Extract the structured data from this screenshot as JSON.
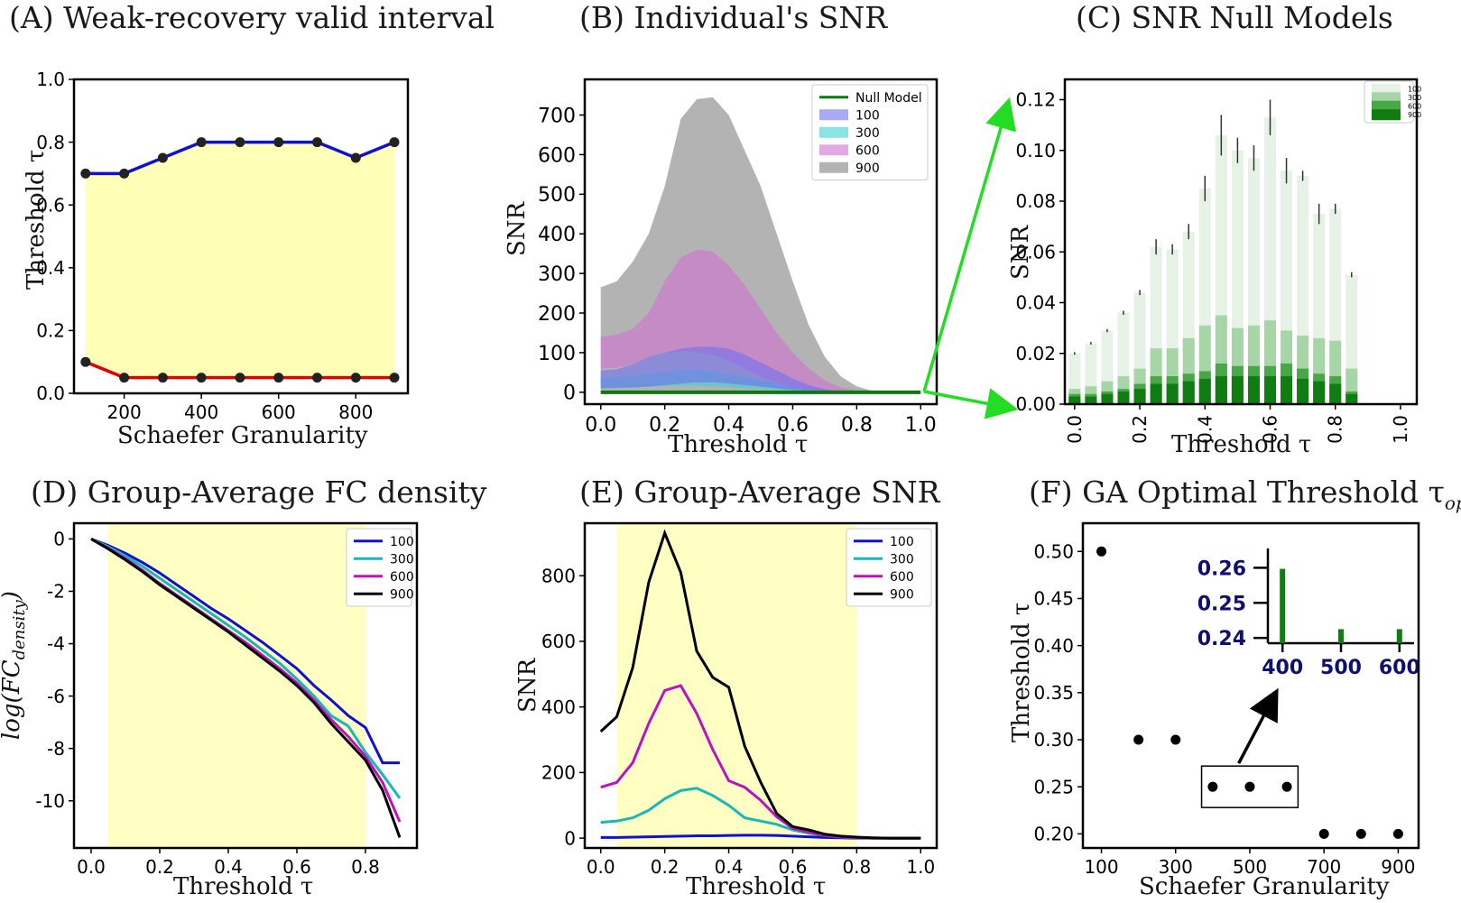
{
  "colors": {
    "blue": "#1010d0",
    "red": "#e00000",
    "yellow_fill": "#ffffb8",
    "cyan": "#17b8b8",
    "magenta": "#c010c0",
    "black": "#000000",
    "green_null": "#0c7a0c",
    "arrow_green": "#22dd22",
    "inset_text": "#101070"
  },
  "chart_data": [
    {
      "id": "A",
      "type": "line",
      "title": "(A) Weak-recovery valid interval",
      "xlabel": "Schaefer Granularity",
      "ylabel": "Threshold τ",
      "xlim": [
        70,
        935
      ],
      "ylim": [
        0,
        1.0
      ],
      "xticks": [
        200,
        400,
        600,
        800
      ],
      "yticks": [
        0.0,
        0.2,
        0.4,
        0.6,
        0.8,
        1.0
      ],
      "x": [
        100,
        200,
        300,
        400,
        500,
        600,
        700,
        800,
        900
      ],
      "series": [
        {
          "name": "upper",
          "color": "blue",
          "values": [
            0.7,
            0.7,
            0.75,
            0.8,
            0.8,
            0.8,
            0.8,
            0.75,
            0.8
          ]
        },
        {
          "name": "lower",
          "color": "red",
          "values": [
            0.1,
            0.05,
            0.05,
            0.05,
            0.05,
            0.05,
            0.05,
            0.05,
            0.05
          ]
        }
      ]
    },
    {
      "id": "B",
      "type": "area",
      "title": "(B) Individual's SNR",
      "xlabel": "Threshold τ",
      "ylabel": "SNR",
      "xlim": [
        -0.05,
        1.05
      ],
      "ylim": [
        -30,
        790
      ],
      "xticks": [
        0.0,
        0.2,
        0.4,
        0.6,
        0.8,
        1.0
      ],
      "yticks": [
        0,
        100,
        200,
        300,
        400,
        500,
        600,
        700
      ],
      "x": [
        0.0,
        0.05,
        0.1,
        0.15,
        0.2,
        0.25,
        0.3,
        0.35,
        0.4,
        0.45,
        0.5,
        0.55,
        0.6,
        0.65,
        0.7,
        0.75,
        0.8,
        0.85,
        0.9,
        0.95,
        1.0
      ],
      "legend": [
        "Null Model",
        "100",
        "300",
        "600",
        "900"
      ],
      "series": [
        {
          "name": "900",
          "color": "#808080",
          "upper": [
            265,
            280,
            330,
            400,
            520,
            690,
            740,
            745,
            700,
            610,
            520,
            400,
            280,
            170,
            90,
            40,
            15,
            3,
            1,
            0,
            0
          ],
          "lower": [
            0,
            0,
            0,
            0,
            0,
            0,
            0,
            0,
            0,
            0,
            0,
            0,
            0,
            0,
            0,
            0,
            0,
            0,
            0,
            0,
            0
          ]
        },
        {
          "name": "600",
          "color": "#d070d0",
          "upper": [
            140,
            145,
            160,
            200,
            280,
            340,
            360,
            355,
            320,
            270,
            210,
            150,
            100,
            60,
            30,
            12,
            4,
            1,
            0,
            0,
            0
          ],
          "lower": [
            60,
            62,
            70,
            90,
            100,
            105,
            100,
            95,
            80,
            60,
            40,
            25,
            12,
            5,
            2,
            0,
            0,
            0,
            0,
            0,
            0
          ]
        },
        {
          "name": "300",
          "color": "#40d0d0",
          "upper": [
            35,
            38,
            42,
            48,
            50,
            55,
            55,
            52,
            45,
            38,
            30,
            22,
            15,
            8,
            4,
            1,
            0,
            0,
            0,
            0,
            0
          ],
          "lower": [
            10,
            11,
            12,
            14,
            15,
            16,
            16,
            15,
            13,
            10,
            8,
            6,
            4,
            2,
            1,
            0,
            0,
            0,
            0,
            0,
            0
          ]
        },
        {
          "name": "100",
          "color": "#7070f0",
          "upper": [
            55,
            58,
            70,
            90,
            100,
            110,
            115,
            115,
            110,
            95,
            75,
            55,
            35,
            18,
            8,
            2,
            0,
            0,
            0,
            0,
            0
          ],
          "lower": [
            10,
            11,
            12,
            14,
            18,
            22,
            25,
            25,
            22,
            18,
            14,
            10,
            6,
            3,
            1,
            0,
            0,
            0,
            0,
            0,
            0
          ]
        }
      ],
      "null_model": {
        "name": "Null Model",
        "value": 0
      }
    },
    {
      "id": "C",
      "type": "bar",
      "title": "(C) SNR Null Models",
      "xlabel": "Threshold τ",
      "ylabel": "SNR",
      "xlim": [
        -0.03,
        1.05
      ],
      "ylim": [
        0,
        0.128
      ],
      "xticks": [
        0.0,
        0.2,
        0.4,
        0.6,
        0.8,
        1.0
      ],
      "yticks": [
        0.0,
        0.02,
        0.04,
        0.06,
        0.08,
        0.1,
        0.12
      ],
      "legend": [
        "100",
        "300",
        "600",
        "900"
      ],
      "x": [
        0.0,
        0.05,
        0.1,
        0.15,
        0.2,
        0.25,
        0.3,
        0.35,
        0.4,
        0.45,
        0.5,
        0.55,
        0.6,
        0.65,
        0.7,
        0.75,
        0.8,
        0.85
      ],
      "series": [
        {
          "name": "100",
          "color": "#e6f2e6",
          "values": [
            0.02,
            0.024,
            0.029,
            0.036,
            0.044,
            0.062,
            0.061,
            0.068,
            0.085,
            0.106,
            0.1,
            0.097,
            0.113,
            0.092,
            0.09,
            0.075,
            0.077,
            0.051
          ]
        },
        {
          "name": "300",
          "color": "#a6d6a6",
          "values": [
            0.006,
            0.007,
            0.009,
            0.011,
            0.014,
            0.022,
            0.022,
            0.026,
            0.031,
            0.035,
            0.03,
            0.031,
            0.033,
            0.029,
            0.027,
            0.026,
            0.025,
            0.014
          ]
        },
        {
          "name": "600",
          "color": "#48a848",
          "values": [
            0.004,
            0.004,
            0.005,
            0.006,
            0.008,
            0.011,
            0.011,
            0.012,
            0.013,
            0.016,
            0.015,
            0.015,
            0.015,
            0.016,
            0.014,
            0.012,
            0.011,
            0.005
          ]
        },
        {
          "name": "900",
          "color": "#0f7d0f",
          "values": [
            0.003,
            0.003,
            0.004,
            0.005,
            0.006,
            0.008,
            0.008,
            0.009,
            0.01,
            0.011,
            0.011,
            0.011,
            0.011,
            0.011,
            0.01,
            0.009,
            0.008,
            0.004
          ]
        }
      ],
      "errors": [
        0.0005,
        0.0005,
        0.0006,
        0.0008,
        0.001,
        0.003,
        0.002,
        0.003,
        0.005,
        0.008,
        0.005,
        0.005,
        0.007,
        0.005,
        0.002,
        0.004,
        0.002,
        0.001
      ]
    },
    {
      "id": "D",
      "type": "line",
      "title": "(D) Group-Average FC density",
      "xlabel": "Threshold τ",
      "ylabel": "log(FC",
      "ylabel_sub": "density",
      "ylabel_end": ")",
      "xlim": [
        -0.05,
        0.95
      ],
      "ylim": [
        -11.8,
        0.6
      ],
      "xticks": [
        0.0,
        0.2,
        0.4,
        0.6,
        0.8
      ],
      "yticks": [
        0,
        -2,
        -4,
        -6,
        -8,
        -10
      ],
      "shade": [
        0.05,
        0.8
      ],
      "legend": [
        "100",
        "300",
        "600",
        "900"
      ],
      "x": [
        0.0,
        0.05,
        0.1,
        0.15,
        0.2,
        0.25,
        0.3,
        0.35,
        0.4,
        0.45,
        0.5,
        0.55,
        0.6,
        0.65,
        0.7,
        0.75,
        0.8,
        0.85,
        0.9
      ],
      "series": [
        {
          "name": "100",
          "color": "blue",
          "values": [
            0,
            -0.25,
            -0.55,
            -0.9,
            -1.3,
            -1.75,
            -2.2,
            -2.65,
            -3.05,
            -3.5,
            -3.95,
            -4.45,
            -4.95,
            -5.6,
            -6.15,
            -6.75,
            -7.2,
            -8.55,
            -8.55
          ]
        },
        {
          "name": "300",
          "color": "cyan",
          "values": [
            0,
            -0.3,
            -0.65,
            -1.05,
            -1.5,
            -1.95,
            -2.4,
            -2.85,
            -3.3,
            -3.75,
            -4.25,
            -4.75,
            -5.35,
            -6.0,
            -6.75,
            -7.15,
            -8.15,
            -9.0,
            -9.9
          ]
        },
        {
          "name": "600",
          "color": "magenta",
          "values": [
            0,
            -0.35,
            -0.75,
            -1.2,
            -1.7,
            -2.15,
            -2.6,
            -3.05,
            -3.5,
            -3.95,
            -4.45,
            -4.95,
            -5.5,
            -6.15,
            -6.9,
            -7.55,
            -8.3,
            -9.3,
            -10.8
          ]
        },
        {
          "name": "900",
          "color": "black",
          "values": [
            0,
            -0.38,
            -0.8,
            -1.25,
            -1.75,
            -2.2,
            -2.65,
            -3.1,
            -3.55,
            -4.05,
            -4.55,
            -5.05,
            -5.6,
            -6.25,
            -7.05,
            -7.75,
            -8.45,
            -9.6,
            -11.4
          ]
        }
      ]
    },
    {
      "id": "E",
      "type": "line",
      "title": "(E) Group-Average SNR",
      "xlabel": "Threshold τ",
      "ylabel": "SNR",
      "xlim": [
        -0.05,
        1.05
      ],
      "ylim": [
        -30,
        960
      ],
      "xticks": [
        0.0,
        0.2,
        0.4,
        0.6,
        0.8,
        1.0
      ],
      "yticks": [
        0,
        200,
        400,
        600,
        800
      ],
      "shade": [
        0.05,
        0.8
      ],
      "legend": [
        "100",
        "300",
        "600",
        "900"
      ],
      "x": [
        0.0,
        0.05,
        0.1,
        0.15,
        0.2,
        0.25,
        0.3,
        0.35,
        0.4,
        0.45,
        0.5,
        0.55,
        0.6,
        0.65,
        0.7,
        0.75,
        0.8,
        0.85,
        0.9,
        0.95,
        1.0
      ],
      "series": [
        {
          "name": "100",
          "color": "blue",
          "values": [
            2,
            2,
            3,
            4,
            5,
            6,
            7,
            7,
            8,
            9,
            9,
            8,
            6,
            4,
            2,
            1,
            0,
            0,
            0,
            0,
            0
          ]
        },
        {
          "name": "300",
          "color": "cyan",
          "values": [
            48,
            52,
            62,
            85,
            120,
            145,
            152,
            130,
            100,
            62,
            52,
            42,
            25,
            15,
            8,
            3,
            1,
            0,
            0,
            0,
            0
          ]
        },
        {
          "name": "600",
          "color": "magenta",
          "values": [
            155,
            170,
            230,
            350,
            450,
            465,
            380,
            270,
            175,
            155,
            115,
            65,
            30,
            18,
            8,
            3,
            1,
            0,
            0,
            0,
            0
          ]
        },
        {
          "name": "900",
          "color": "black",
          "values": [
            325,
            370,
            520,
            780,
            930,
            810,
            570,
            490,
            460,
            280,
            170,
            75,
            35,
            25,
            12,
            6,
            3,
            1,
            0,
            0,
            0
          ]
        }
      ]
    },
    {
      "id": "F",
      "type": "scatter",
      "title": "(F) GA Optimal Threshold τ",
      "title_sub": "opt",
      "xlabel": "Schaefer Granularity",
      "ylabel": "Threshold τ",
      "xlim": [
        50,
        955
      ],
      "ylim": [
        0.185,
        0.53
      ],
      "xticks": [
        100,
        300,
        500,
        700,
        900
      ],
      "yticks": [
        0.2,
        0.25,
        0.3,
        0.35,
        0.4,
        0.45,
        0.5
      ],
      "x": [
        100,
        200,
        300,
        400,
        500,
        600,
        700,
        800,
        900
      ],
      "values": [
        0.5,
        0.3,
        0.3,
        0.25,
        0.25,
        0.25,
        0.2,
        0.2,
        0.2
      ],
      "inset": {
        "type": "bar",
        "x": [
          400,
          500,
          600
        ],
        "values": [
          0.2597,
          0.2425,
          0.2425
        ],
        "xticks": [
          400,
          500,
          600
        ],
        "yticks": [
          0.24,
          0.25,
          0.26
        ],
        "ytick_labels": [
          "0.24",
          "0.25",
          "0.26"
        ]
      }
    }
  ]
}
